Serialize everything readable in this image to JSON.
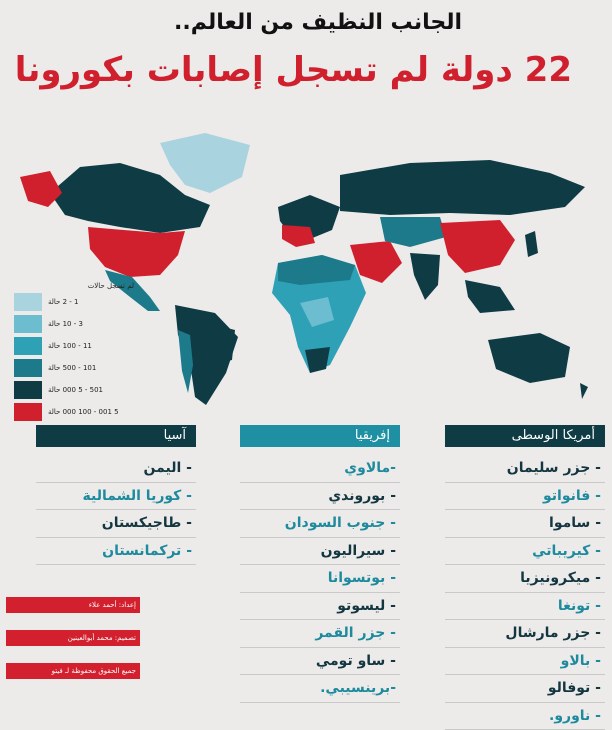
{
  "header": {
    "line1": "الجانب النظيف من العالم..",
    "line2": "22 دولة لم تسجل إصابات بكورونا"
  },
  "legend": {
    "title": "لم تسجل حالات",
    "items": [
      {
        "label": "1 - 2 حالة",
        "color": "#a9d3df"
      },
      {
        "label": "3 - 10 حالة",
        "color": "#6cbdd0"
      },
      {
        "label": "11 - 100 حالة",
        "color": "#2ea1b6"
      },
      {
        "label": "101 - 500 حالة",
        "color": "#1d7a8b"
      },
      {
        "label": "501 - 5 000 حالة",
        "color": "#0f3b45"
      },
      {
        "label": "5 001 - 100 000 حالة",
        "color": "#d0202e"
      }
    ],
    "none_color": "#c8c8c8"
  },
  "columns": {
    "asia": {
      "title": "آسيا",
      "items": [
        "- اليمن",
        "- كوريا الشمالية",
        "- طاجيكستان",
        "- تركمانستان"
      ]
    },
    "africa": {
      "title": "إفريقيا",
      "items": [
        "-مالاوي",
        "- بوروندي",
        "- جنوب السودان",
        "- سيراليون",
        "- بوتسوانا",
        "- ليسوتو",
        "- جزر القمر",
        "- ساو تومي",
        "-برينسيبي."
      ]
    },
    "central_america": {
      "title": "أمريكا الوسطى",
      "items": [
        "- جزر سليمان",
        "- فانواتو",
        "- ساموا",
        "- كيريباتي",
        "- ميكرونيزيا",
        "- تونغا",
        "- جزر مارشال",
        "- بالاو",
        "- توفالو",
        "- ناورو."
      ]
    }
  },
  "credits": {
    "prepared": "إعداد: أحمد علاء",
    "design": "تصميم: محمد أبوالعينين",
    "rights": "جميع الحقوق محفوظة لـ فيتو"
  },
  "colors": {
    "red": "#d0202e",
    "dark": "#0f3b45",
    "teal": "#1f8fa3",
    "background": "#ecebea"
  }
}
